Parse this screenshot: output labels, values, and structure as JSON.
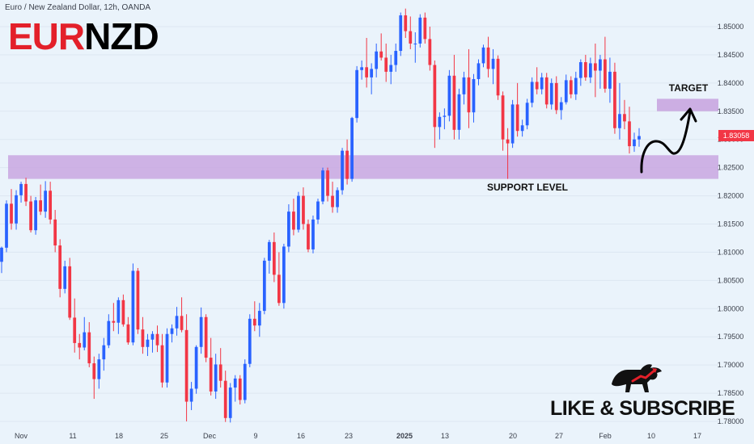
{
  "header": {
    "instrument": "Euro / New Zealand Dollar, 12h, OANDA",
    "logo_part1": "EUR",
    "logo_part2": "NZD"
  },
  "colors": {
    "up": "#2962ff",
    "down": "#f23645",
    "zone": "#c9a6e0",
    "background": "#eaf3fb"
  },
  "current_price": "1.83058",
  "cta_text": "LIKE & SUBSCRIBE",
  "bull_icon": "bull-icon",
  "chart_data": {
    "type": "candlestick",
    "title": "EURNZD",
    "y_ticks": [
      "1.85000",
      "1.84500",
      "1.84000",
      "1.83500",
      "1.83000",
      "1.82500",
      "1.82000",
      "1.81500",
      "1.81000",
      "1.80500",
      "1.80000",
      "1.79500",
      "1.79000",
      "1.78500",
      "1.78000"
    ],
    "x_ticks": [
      "Nov",
      "11",
      "18",
      "25",
      "Dec",
      "9",
      "16",
      "23",
      "2025",
      "13",
      "20",
      "27",
      "Feb",
      "10",
      "17"
    ],
    "ylim": [
      1.778,
      1.853
    ],
    "annotations": {
      "support_label": "SUPPORT LEVEL",
      "target_label": "TARGET",
      "support_zone": [
        1.823,
        1.8272
      ],
      "target_zone": [
        1.835,
        1.8372
      ]
    },
    "candles_ohlc": [
      [
        1.8083,
        1.811,
        1.8063,
        1.8108
      ],
      [
        1.8108,
        1.8192,
        1.81,
        1.8186
      ],
      [
        1.8186,
        1.8212,
        1.814,
        1.8151
      ],
      [
        1.8151,
        1.821,
        1.814,
        1.8201
      ],
      [
        1.8201,
        1.8225,
        1.8188,
        1.8221
      ],
      [
        1.8221,
        1.8232,
        1.8182,
        1.819
      ],
      [
        1.819,
        1.82,
        1.8135,
        1.8139
      ],
      [
        1.8139,
        1.8198,
        1.8131,
        1.8192
      ],
      [
        1.8192,
        1.822,
        1.8166,
        1.8172
      ],
      [
        1.8172,
        1.8226,
        1.8161,
        1.8209
      ],
      [
        1.8209,
        1.8225,
        1.815,
        1.8158
      ],
      [
        1.8158,
        1.8175,
        1.81,
        1.8112
      ],
      [
        1.8112,
        1.8123,
        1.802,
        1.8035
      ],
      [
        1.8035,
        1.8085,
        1.8027,
        1.8075
      ],
      [
        1.8075,
        1.809,
        1.798,
        1.7984
      ],
      [
        1.7984,
        1.8018,
        1.7922,
        1.7939
      ],
      [
        1.7939,
        1.7955,
        1.791,
        1.7931
      ],
      [
        1.7931,
        1.7985,
        1.7926,
        1.7958
      ],
      [
        1.7958,
        1.7976,
        1.7896,
        1.7903
      ],
      [
        1.7903,
        1.7915,
        1.784,
        1.7875
      ],
      [
        1.7875,
        1.792,
        1.7858,
        1.791
      ],
      [
        1.791,
        1.7948,
        1.789,
        1.7935
      ],
      [
        1.7935,
        1.799,
        1.793,
        1.7978
      ],
      [
        1.7978,
        1.801,
        1.796,
        1.7975
      ],
      [
        1.7975,
        1.802,
        1.7955,
        1.8015
      ],
      [
        1.8015,
        1.8025,
        1.7968,
        1.7972
      ],
      [
        1.7972,
        1.7985,
        1.7936,
        1.794
      ],
      [
        1.794,
        1.808,
        1.7935,
        1.8067
      ],
      [
        1.8067,
        1.8072,
        1.7955,
        1.7963
      ],
      [
        1.7963,
        1.7985,
        1.792,
        1.7932
      ],
      [
        1.7932,
        1.7955,
        1.7916,
        1.7945
      ],
      [
        1.7945,
        1.796,
        1.7922,
        1.7955
      ],
      [
        1.7955,
        1.797,
        1.7923,
        1.7935
      ],
      [
        1.7935,
        1.7955,
        1.786,
        1.7869
      ],
      [
        1.7869,
        1.7965,
        1.786,
        1.7955
      ],
      [
        1.7955,
        1.7972,
        1.794,
        1.7965
      ],
      [
        1.7965,
        1.8003,
        1.7952,
        1.7987
      ],
      [
        1.7987,
        1.802,
        1.7958,
        1.7962
      ],
      [
        1.7962,
        1.799,
        1.78,
        1.7835
      ],
      [
        1.7835,
        1.787,
        1.782,
        1.7858
      ],
      [
        1.7858,
        1.7935,
        1.7849,
        1.7932
      ],
      [
        1.7932,
        1.8002,
        1.792,
        1.7985
      ],
      [
        1.7985,
        1.799,
        1.7905,
        1.7913
      ],
      [
        1.7913,
        1.7948,
        1.7846,
        1.7853
      ],
      [
        1.7853,
        1.792,
        1.784,
        1.7901
      ],
      [
        1.7901,
        1.793,
        1.786,
        1.7872
      ],
      [
        1.7872,
        1.789,
        1.7799,
        1.7806
      ],
      [
        1.7806,
        1.7868,
        1.7798,
        1.786
      ],
      [
        1.786,
        1.7882,
        1.7835,
        1.7876
      ],
      [
        1.7876,
        1.7882,
        1.783,
        1.7838
      ],
      [
        1.7838,
        1.791,
        1.7832,
        1.7902
      ],
      [
        1.7902,
        1.799,
        1.7896,
        1.7982
      ],
      [
        1.7982,
        1.8013,
        1.796,
        1.797
      ],
      [
        1.797,
        1.801,
        1.795,
        1.7996
      ],
      [
        1.7996,
        1.809,
        1.799,
        1.8085
      ],
      [
        1.8085,
        1.8122,
        1.8062,
        1.8118
      ],
      [
        1.8118,
        1.8135,
        1.8047,
        1.806
      ],
      [
        1.806,
        1.81,
        1.8005,
        1.801
      ],
      [
        1.801,
        1.8115,
        1.8,
        1.811
      ],
      [
        1.811,
        1.8185,
        1.81,
        1.8172
      ],
      [
        1.8172,
        1.8195,
        1.813,
        1.814
      ],
      [
        1.814,
        1.8207,
        1.8135,
        1.82
      ],
      [
        1.82,
        1.8215,
        1.814,
        1.815
      ],
      [
        1.815,
        1.8158,
        1.81,
        1.8105
      ],
      [
        1.8105,
        1.8165,
        1.8098,
        1.8158
      ],
      [
        1.8158,
        1.8195,
        1.815,
        1.819
      ],
      [
        1.819,
        1.825,
        1.8185,
        1.8245
      ],
      [
        1.8245,
        1.825,
        1.819,
        1.82
      ],
      [
        1.82,
        1.8225,
        1.817,
        1.818
      ],
      [
        1.818,
        1.8215,
        1.817,
        1.821
      ],
      [
        1.821,
        1.8285,
        1.8202,
        1.828
      ],
      [
        1.828,
        1.83,
        1.822,
        1.823
      ],
      [
        1.823,
        1.834,
        1.8225,
        1.8338
      ],
      [
        1.8338,
        1.843,
        1.833,
        1.8423
      ],
      [
        1.8423,
        1.844,
        1.8406,
        1.8428
      ],
      [
        1.8428,
        1.848,
        1.8392,
        1.841
      ],
      [
        1.841,
        1.8435,
        1.838,
        1.8425
      ],
      [
        1.8425,
        1.847,
        1.841,
        1.8456
      ],
      [
        1.8456,
        1.8488,
        1.844,
        1.8445
      ],
      [
        1.8445,
        1.847,
        1.8402,
        1.842
      ],
      [
        1.842,
        1.845,
        1.8398,
        1.8432
      ],
      [
        1.8432,
        1.847,
        1.842,
        1.8457
      ],
      [
        1.8457,
        1.8525,
        1.8448,
        1.852
      ],
      [
        1.852,
        1.8532,
        1.848,
        1.8492
      ],
      [
        1.8492,
        1.8518,
        1.846,
        1.847
      ],
      [
        1.847,
        1.849,
        1.8436,
        1.847
      ],
      [
        1.847,
        1.8522,
        1.8463,
        1.8516
      ],
      [
        1.8516,
        1.8525,
        1.847,
        1.8478
      ],
      [
        1.8478,
        1.85,
        1.8422,
        1.8432
      ],
      [
        1.8432,
        1.844,
        1.8285,
        1.8322
      ],
      [
        1.8322,
        1.8348,
        1.83,
        1.834
      ],
      [
        1.834,
        1.8355,
        1.8318,
        1.8342
      ],
      [
        1.8342,
        1.8423,
        1.8332,
        1.8413
      ],
      [
        1.8413,
        1.845,
        1.83,
        1.8317
      ],
      [
        1.8317,
        1.839,
        1.83,
        1.838
      ],
      [
        1.838,
        1.842,
        1.8362,
        1.841
      ],
      [
        1.841,
        1.846,
        1.832,
        1.8348
      ],
      [
        1.8348,
        1.8416,
        1.833,
        1.8407
      ],
      [
        1.8407,
        1.8442,
        1.8396,
        1.8435
      ],
      [
        1.8435,
        1.8468,
        1.8428,
        1.8463
      ],
      [
        1.8463,
        1.8482,
        1.841,
        1.8425
      ],
      [
        1.8425,
        1.846,
        1.8398,
        1.8443
      ],
      [
        1.8443,
        1.8449,
        1.837,
        1.8378
      ],
      [
        1.8378,
        1.8385,
        1.828,
        1.83
      ],
      [
        1.83,
        1.832,
        1.823,
        1.8293
      ],
      [
        1.8293,
        1.837,
        1.8285,
        1.8362
      ],
      [
        1.8362,
        1.84,
        1.8305,
        1.8315
      ],
      [
        1.8315,
        1.8335,
        1.8305,
        1.8325
      ],
      [
        1.8325,
        1.8372,
        1.8318,
        1.8365
      ],
      [
        1.8365,
        1.841,
        1.8357,
        1.8402
      ],
      [
        1.8402,
        1.8428,
        1.838,
        1.8389
      ],
      [
        1.8389,
        1.8418,
        1.838,
        1.841
      ],
      [
        1.841,
        1.8418,
        1.8355,
        1.8362
      ],
      [
        1.8362,
        1.8408,
        1.8353,
        1.84
      ],
      [
        1.84,
        1.8412,
        1.8345,
        1.8352
      ],
      [
        1.8352,
        1.8375,
        1.8335,
        1.8366
      ],
      [
        1.8366,
        1.8415,
        1.8362,
        1.8405
      ],
      [
        1.8405,
        1.8412,
        1.8373,
        1.838
      ],
      [
        1.838,
        1.842,
        1.837,
        1.8409
      ],
      [
        1.8409,
        1.8442,
        1.8395,
        1.8437
      ],
      [
        1.8437,
        1.845,
        1.8404,
        1.841
      ],
      [
        1.841,
        1.8445,
        1.84,
        1.8435
      ],
      [
        1.8435,
        1.847,
        1.8375,
        1.8422
      ],
      [
        1.8422,
        1.845,
        1.839,
        1.8442
      ],
      [
        1.8442,
        1.8482,
        1.8383,
        1.839
      ],
      [
        1.839,
        1.8445,
        1.8365,
        1.842
      ],
      [
        1.842,
        1.8436,
        1.831,
        1.832
      ],
      [
        1.832,
        1.84,
        1.83,
        1.8345
      ],
      [
        1.8345,
        1.837,
        1.8318,
        1.8332
      ],
      [
        1.8332,
        1.8358,
        1.8275,
        1.8288
      ],
      [
        1.8288,
        1.8312,
        1.8278,
        1.83
      ],
      [
        1.83,
        1.832,
        1.8287,
        1.8306
      ]
    ]
  }
}
